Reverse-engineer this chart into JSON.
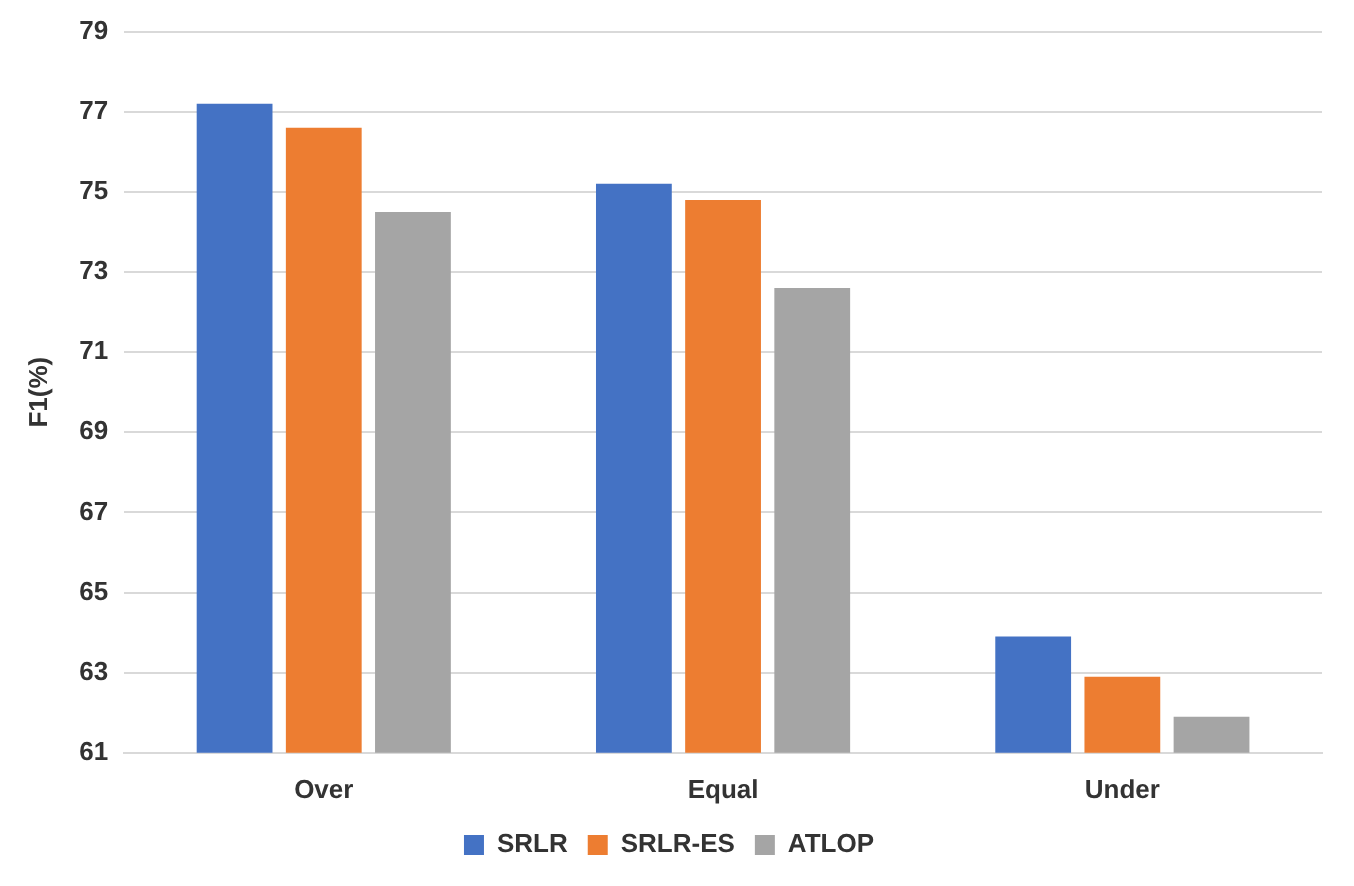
{
  "chart_data": {
    "type": "bar",
    "ylabel": "F1(%)",
    "categories": [
      "Over",
      "Equal",
      "Under"
    ],
    "series": [
      {
        "name": "SRLR",
        "color": "#4472c4",
        "values": [
          77.2,
          75.2,
          63.9
        ]
      },
      {
        "name": "SRLR-ES",
        "color": "#ed7d31",
        "values": [
          76.6,
          74.8,
          62.9
        ]
      },
      {
        "name": "ATLOP",
        "color": "#a5a5a5",
        "values": [
          74.5,
          72.6,
          61.9
        ]
      }
    ],
    "ylim": [
      61,
      79
    ],
    "yticks": [
      61,
      63,
      65,
      67,
      69,
      71,
      73,
      75,
      77,
      79
    ],
    "grid": "y",
    "legend": "bottom"
  }
}
